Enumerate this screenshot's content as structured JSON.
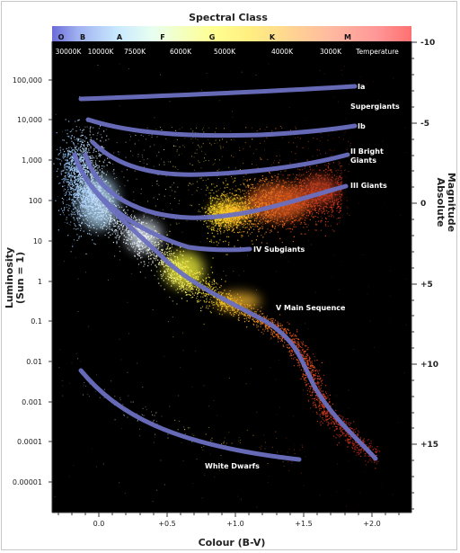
{
  "title": "Spectral Class",
  "spectral_classes": [
    "O",
    "B",
    "A",
    "F",
    "G",
    "K",
    "M"
  ],
  "temperatures": [
    "30000K",
    "10000K",
    "7500K",
    "6000K",
    "5000K",
    "4000K",
    "3000K"
  ],
  "temperature_label": "Temperature",
  "y_left_label_line1": "Luminosity",
  "y_left_label_line2": "(Sun = 1)",
  "y_right_label_line1": "Absolute",
  "y_right_label_line2": "Magnitude",
  "x_label": "Colour (B-V)",
  "luminosity_ticks": [
    "100,000",
    "10,000",
    "1,000",
    "100",
    "10",
    "1",
    "0.1",
    "0.01",
    "0.001",
    "0.0001",
    "0.00001"
  ],
  "magnitude_ticks": [
    "-10",
    "-5",
    "0",
    "+5",
    "+10",
    "+15"
  ],
  "colour_ticks": [
    "0.0",
    "+0.5",
    "+1.0",
    "+1.5",
    "+2.0"
  ],
  "regions": {
    "ia": "Ia",
    "supergiants": "Supergiants",
    "ib": "Ib",
    "bright_giants_1": "II Bright",
    "bright_giants_2": "Giants",
    "giants": "III  Giants",
    "subgiants": "IV Subgiants",
    "main_sequence": "V Main Sequence",
    "white_dwarfs": "White Dwarfs"
  },
  "colors": {
    "plot_bg": "#000000",
    "branch_line": "#6b6fc0",
    "hot_star": "#9fd8ff",
    "sun_star": "#ffee33",
    "cool_star": "#e8501c"
  }
}
